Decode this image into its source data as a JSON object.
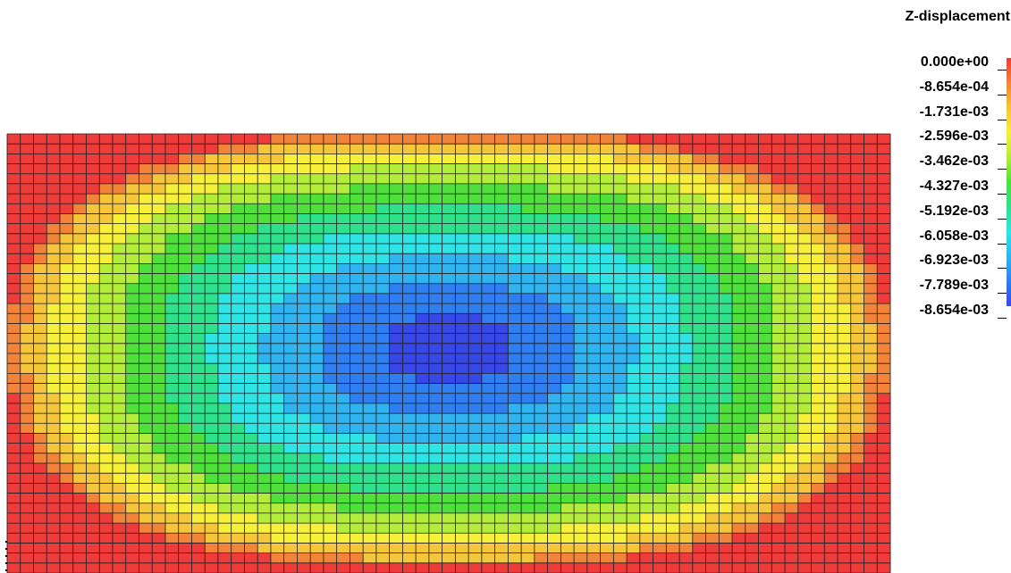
{
  "chart_data": {
    "type": "heatmap",
    "title": "",
    "field": "Z-displacement",
    "mesh": {
      "columns": 67,
      "rows": 44
    },
    "colorbar": {
      "label": "Z-displacement",
      "ticks": [
        "0.000e+00",
        "-8.654e-04",
        "-1.731e-03",
        "-2.596e-03",
        "-3.462e-03",
        "-4.327e-03",
        "-5.192e-03",
        "-6.058e-03",
        "-6.923e-03",
        "-7.789e-03",
        "-8.654e-03"
      ],
      "min": -0.008654,
      "max": 0.0,
      "bands": [
        "#ee3c3a",
        "#f2843a",
        "#f5c53a",
        "#f6f03a",
        "#b4ec3a",
        "#4fe03c",
        "#2fe08c",
        "#2fe4e4",
        "#2fb4f0",
        "#2f7ef2",
        "#3848e6"
      ]
    },
    "grid": true,
    "legend_position": "right"
  }
}
